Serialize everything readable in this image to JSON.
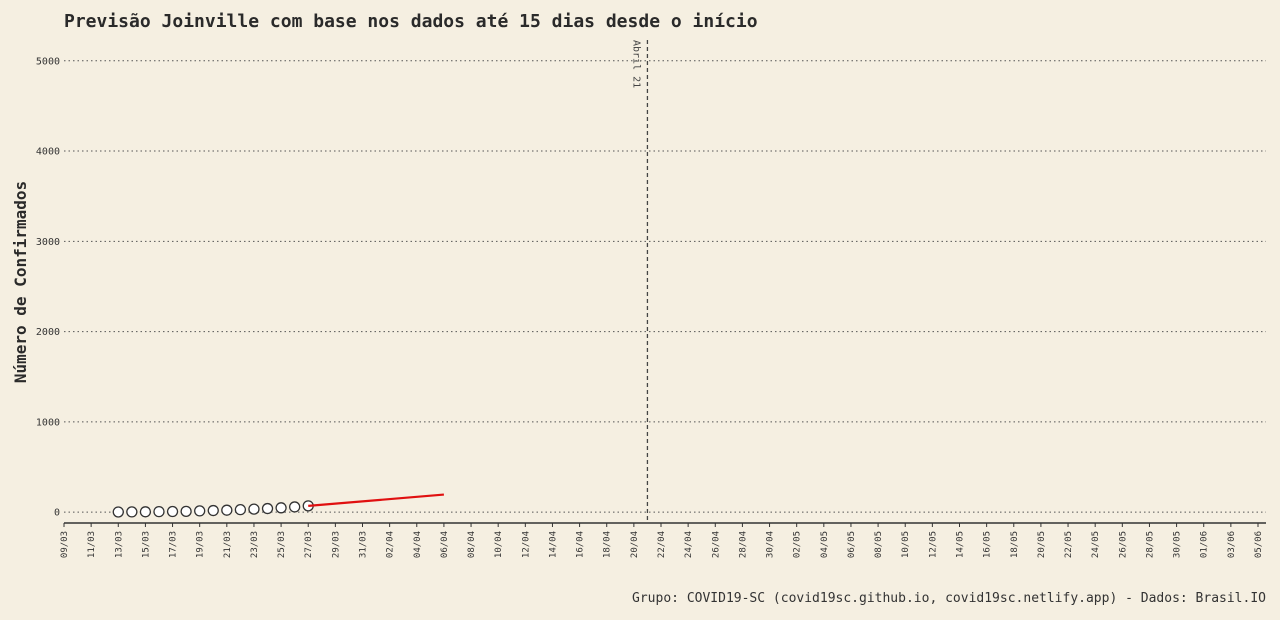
{
  "chart_data": {
    "type": "line",
    "title": "Previsão Joinville com base nos dados até 15 dias desde o início",
    "xlabel": "",
    "ylabel": "Número de Confirmados",
    "caption": "Grupo: COVID19-SC (covid19sc.github.io, covid19sc.netlify.app)   -   Dados: Brasil.IO",
    "ylim": [
      -120,
      5230
    ],
    "yticks": [
      0,
      1000,
      2000,
      3000,
      4000,
      5000
    ],
    "ytick_labels": [
      "0",
      "1000",
      "2000",
      "3000",
      "4000",
      "5000"
    ],
    "x_ticks": [
      "09/03",
      "11/03",
      "13/03",
      "15/03",
      "17/03",
      "19/03",
      "21/03",
      "23/03",
      "25/03",
      "27/03",
      "29/03",
      "31/03",
      "02/04",
      "04/04",
      "06/04",
      "08/04",
      "10/04",
      "12/04",
      "14/04",
      "16/04",
      "18/04",
      "20/04",
      "22/04",
      "24/04",
      "26/04",
      "28/04",
      "30/04",
      "02/05",
      "04/05",
      "06/05",
      "08/05",
      "10/05",
      "12/05",
      "14/05",
      "16/05",
      "18/05",
      "20/05",
      "22/05",
      "24/05",
      "26/05",
      "28/05",
      "30/05",
      "01/06",
      "03/06",
      "05/06"
    ],
    "x_start": "09/03",
    "x_end": "05/06",
    "grid": "horizontal dotted",
    "annotation": {
      "x": "21/04",
      "label": "Abril 21",
      "style": "dashed vertical line"
    },
    "series": [
      {
        "kind": "observed points",
        "x": [
          "13/03",
          "14/03",
          "15/03",
          "16/03",
          "17/03",
          "18/03",
          "19/03",
          "20/03",
          "21/03",
          "22/03",
          "23/03",
          "24/03",
          "25/03",
          "26/03",
          "27/03"
        ],
        "values": [
          2,
          3,
          4,
          6,
          7,
          9,
          14,
          18,
          22,
          28,
          34,
          40,
          48,
          58,
          70
        ],
        "color": "#333333"
      },
      {
        "kind": "forecast line",
        "x": [
          "27/03",
          "06/04"
        ],
        "values": [
          70,
          195
        ],
        "color": "#e01010"
      }
    ]
  }
}
